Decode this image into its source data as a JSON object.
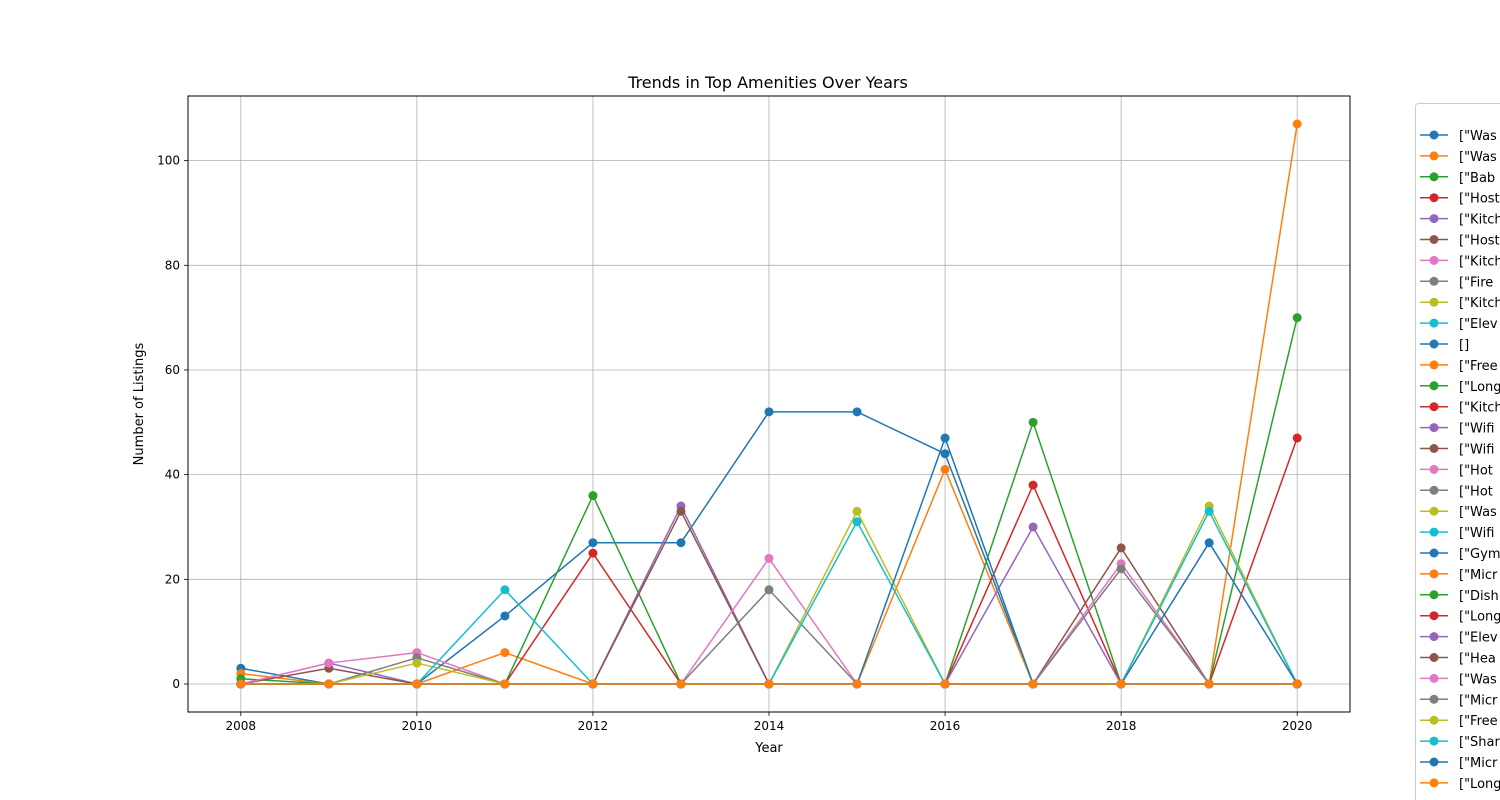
{
  "chart_data": {
    "type": "line",
    "title": "Trends in Top Amenities Over Years",
    "xlabel": "Year",
    "ylabel": "Number of Listings",
    "xlim": [
      2007.4,
      2020.6
    ],
    "ylim": [
      -5.35,
      112.35
    ],
    "x_ticks": [
      "2008",
      "2010",
      "2012",
      "2014",
      "2016",
      "2018",
      "2020"
    ],
    "y_ticks": [
      "0",
      "20",
      "40",
      "60",
      "80",
      "100"
    ],
    "grid": true,
    "legend_position": "right, outside plot",
    "x": [
      2008,
      2009,
      2010,
      2011,
      2012,
      2013,
      2014,
      2015,
      2016,
      2017,
      2018,
      2019,
      2020
    ],
    "series": [
      {
        "name": "[\"Was",
        "color": "#1f77b4",
        "values": [
          3,
          0,
          0,
          13,
          27,
          27,
          52,
          52,
          44,
          0,
          0,
          0,
          0
        ]
      },
      {
        "name": "[\"Was",
        "color": "#ff7f0e",
        "values": [
          2,
          0,
          0,
          6,
          0,
          0,
          0,
          0,
          41,
          0,
          0,
          0,
          107
        ]
      },
      {
        "name": "[\"Bab",
        "color": "#2ca02c",
        "values": [
          1,
          0,
          0,
          0,
          36,
          0,
          0,
          0,
          0,
          50,
          0,
          0,
          70
        ]
      },
      {
        "name": "[\"Host",
        "color": "#d62728",
        "values": [
          0,
          0,
          0,
          0,
          25,
          0,
          0,
          0,
          0,
          38,
          0,
          0,
          47
        ]
      },
      {
        "name": "[\"Kitch",
        "color": "#9467bd",
        "values": [
          0,
          4,
          0,
          0,
          0,
          34,
          0,
          0,
          0,
          30,
          0,
          0,
          0
        ]
      },
      {
        "name": "[\"Host",
        "color": "#8c564b",
        "values": [
          0,
          3,
          0,
          0,
          0,
          33,
          0,
          0,
          0,
          0,
          26,
          0,
          0
        ]
      },
      {
        "name": "[\"Kitch",
        "color": "#e377c2",
        "values": [
          0,
          4,
          6,
          0,
          0,
          0,
          24,
          0,
          0,
          0,
          23,
          0,
          0
        ]
      },
      {
        "name": "[\"Fire",
        "color": "#7f7f7f",
        "values": [
          0,
          0,
          5,
          0,
          0,
          0,
          18,
          0,
          0,
          0,
          22,
          0,
          0
        ]
      },
      {
        "name": "[\"Kitch",
        "color": "#bcbd22",
        "values": [
          0,
          0,
          4,
          0,
          0,
          0,
          0,
          33,
          0,
          0,
          0,
          34,
          0
        ]
      },
      {
        "name": "[\"Elev",
        "color": "#17becf",
        "values": [
          0,
          0,
          0,
          18,
          0,
          0,
          0,
          31,
          0,
          0,
          0,
          33,
          0
        ]
      },
      {
        "name": "[]",
        "color": "#1f77b4",
        "values": [
          0,
          0,
          0,
          0,
          0,
          0,
          0,
          0,
          47,
          0,
          0,
          27,
          0
        ]
      },
      {
        "name": "[\"Free",
        "color": "#ff7f0e",
        "values": [
          0,
          0,
          0,
          0,
          0,
          0,
          0,
          0,
          0,
          0,
          0,
          0,
          0
        ]
      },
      {
        "name": "[\"Long",
        "color": "#2ca02c",
        "values": [
          0,
          0,
          0,
          0,
          0,
          0,
          0,
          0,
          0,
          0,
          0,
          0,
          0
        ]
      },
      {
        "name": "[\"Kitch",
        "color": "#d62728",
        "values": [
          0,
          0,
          0,
          0,
          0,
          0,
          0,
          0,
          0,
          0,
          0,
          0,
          0
        ]
      },
      {
        "name": "[\"Wifi",
        "color": "#9467bd",
        "values": [
          0,
          0,
          0,
          0,
          0,
          0,
          0,
          0,
          0,
          0,
          0,
          0,
          0
        ]
      },
      {
        "name": "[\"Wifi",
        "color": "#8c564b",
        "values": [
          0,
          0,
          0,
          0,
          0,
          0,
          0,
          0,
          0,
          0,
          0,
          0,
          0
        ]
      },
      {
        "name": "[\"Hot",
        "color": "#e377c2",
        "values": [
          0,
          0,
          0,
          0,
          0,
          0,
          0,
          0,
          0,
          0,
          0,
          0,
          0
        ]
      },
      {
        "name": "[\"Hot",
        "color": "#7f7f7f",
        "values": [
          0,
          0,
          0,
          0,
          0,
          0,
          0,
          0,
          0,
          0,
          0,
          0,
          0
        ]
      },
      {
        "name": "[\"Was",
        "color": "#bcbd22",
        "values": [
          0,
          0,
          0,
          0,
          0,
          0,
          0,
          0,
          0,
          0,
          0,
          0,
          0
        ]
      },
      {
        "name": "[\"Wifi",
        "color": "#17becf",
        "values": [
          0,
          0,
          0,
          0,
          0,
          0,
          0,
          0,
          0,
          0,
          0,
          0,
          0
        ]
      },
      {
        "name": "[\"Gym",
        "color": "#1f77b4",
        "values": [
          0,
          0,
          0,
          0,
          0,
          0,
          0,
          0,
          0,
          0,
          0,
          0,
          0
        ]
      },
      {
        "name": "[\"Micr",
        "color": "#ff7f0e",
        "values": [
          0,
          0,
          0,
          0,
          0,
          0,
          0,
          0,
          0,
          0,
          0,
          0,
          0
        ]
      },
      {
        "name": "[\"Dish",
        "color": "#2ca02c",
        "values": [
          0,
          0,
          0,
          0,
          0,
          0,
          0,
          0,
          0,
          0,
          0,
          0,
          0
        ]
      },
      {
        "name": "[\"Long",
        "color": "#d62728",
        "values": [
          0,
          0,
          0,
          0,
          0,
          0,
          0,
          0,
          0,
          0,
          0,
          0,
          0
        ]
      },
      {
        "name": "[\"Elev",
        "color": "#9467bd",
        "values": [
          0,
          0,
          0,
          0,
          0,
          0,
          0,
          0,
          0,
          0,
          0,
          0,
          0
        ]
      },
      {
        "name": "[\"Hea",
        "color": "#8c564b",
        "values": [
          0,
          0,
          0,
          0,
          0,
          0,
          0,
          0,
          0,
          0,
          0,
          0,
          0
        ]
      },
      {
        "name": "[\"Was",
        "color": "#e377c2",
        "values": [
          0,
          0,
          0,
          0,
          0,
          0,
          0,
          0,
          0,
          0,
          0,
          0,
          0
        ]
      },
      {
        "name": "[\"Micr",
        "color": "#7f7f7f",
        "values": [
          0,
          0,
          0,
          0,
          0,
          0,
          0,
          0,
          0,
          0,
          0,
          0,
          0
        ]
      },
      {
        "name": "[\"Free",
        "color": "#bcbd22",
        "values": [
          0,
          0,
          0,
          0,
          0,
          0,
          0,
          0,
          0,
          0,
          0,
          0,
          0
        ]
      },
      {
        "name": "[\"Shar",
        "color": "#17becf",
        "values": [
          0,
          0,
          0,
          0,
          0,
          0,
          0,
          0,
          0,
          0,
          0,
          0,
          0
        ]
      },
      {
        "name": "[\"Micr",
        "color": "#1f77b4",
        "values": [
          0,
          0,
          0,
          0,
          0,
          0,
          0,
          0,
          0,
          0,
          0,
          0,
          0
        ]
      },
      {
        "name": "[\"Long",
        "color": "#ff7f0e",
        "values": [
          0,
          0,
          0,
          0,
          0,
          0,
          0,
          0,
          0,
          0,
          0,
          0,
          0
        ]
      }
    ]
  }
}
